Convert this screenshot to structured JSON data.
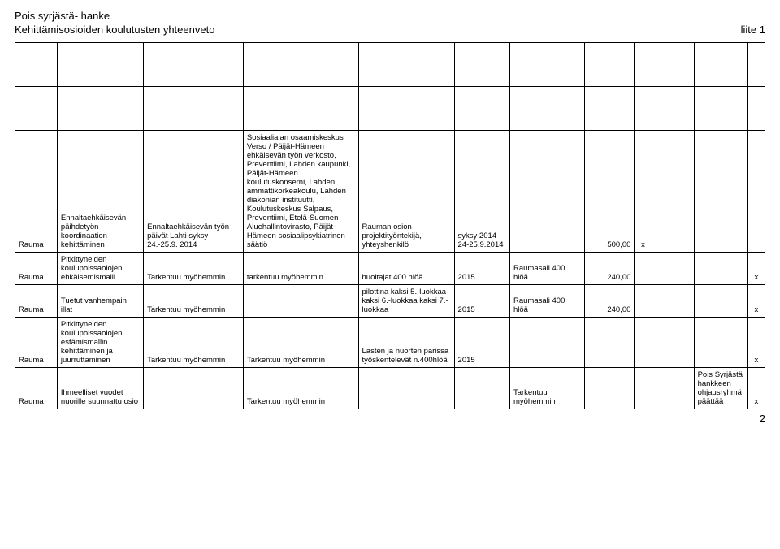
{
  "header": {
    "line1": "Pois syrjästä- hanke",
    "line2_left": "Kehittämisosioiden koulutusten yhteenveto",
    "line2_right": "liite 1"
  },
  "rows": [
    {
      "cells": [
        "",
        "",
        "",
        "",
        "",
        "",
        "",
        "",
        "",
        "",
        "",
        ""
      ],
      "cls": "empty-top"
    },
    {
      "cells": [
        "",
        "",
        "",
        "",
        "",
        "",
        "",
        "",
        "",
        "",
        "",
        ""
      ],
      "cls": "empty-top"
    },
    {
      "cells": [
        "Rauma",
        "Ennaltaehkäisevän päihdetyön koordinaation kehittäminen",
        "Ennaltaehkäisevän työn päivät Lahti syksy 24.-25.9. 2014",
        "Sosiaalialan osaamiskeskus Verso / Päijät-Hämeen ehkäisevän työn verkosto, Preventiimi, Lahden kaupunki, Päijät-Hämeen koulutuskonserni, Lahden ammattikorkeakoulu, Lahden diakonian instituutti, Koulutuskeskus Salpaus, Preventiimi, Etelä-Suomen Aluehallintovirasto, Päijät-Hämeen sosiaalipsykiatrinen säätiö",
        "Rauman osion projektityöntekijä, yhteyshenkilö",
        "syksy 2014 24-25.9.2014",
        "",
        "500,00",
        "x",
        "",
        "",
        ""
      ]
    },
    {
      "cells": [
        "Rauma",
        "Pitkittyneiden koulupoissaolojen ehkäisemismalli",
        "Tarkentuu myöhemmin",
        "tarkentuu myöhemmin",
        "huoltajat 400 hlöä",
        "2015",
        "Raumasali 400 hlöä",
        "240,00",
        "",
        "",
        "",
        "x"
      ]
    },
    {
      "cells": [
        "Rauma",
        "Tuetut vanhempain illat",
        "Tarkentuu myöhemmin",
        "",
        "pilottina kaksi 5.-luokkaa kaksi 6.-luokkaa kaksi 7.-luokkaa",
        "2015",
        "Raumasali 400 hlöä",
        "240,00",
        "",
        "",
        "",
        "x"
      ]
    },
    {
      "cells": [
        "Rauma",
        "Pitkittyneiden koulupoissaolojen estämismallin kehittäminen ja juurruttaminen",
        "Tarkentuu myöhemmin",
        "Tarkentuu myöhemmin",
        "Lasten ja nuorten parissa työskentelevät n.400hlöä",
        "2015",
        "",
        "",
        "",
        "",
        "",
        "x"
      ]
    },
    {
      "cells": [
        "Rauma",
        "Ihmeelliset vuodet nuorille suunnattu osio",
        "",
        "Tarkentuu myöhemmin",
        "",
        "",
        "Tarkentuu myöhemmin",
        "",
        "",
        "",
        "Pois Syrjästä hankkeen ohjausryhmä päättää",
        "x"
      ]
    }
  ],
  "columns": [
    "col-a",
    "col-b",
    "col-c",
    "col-d",
    "col-e",
    "col-f",
    "col-g",
    "col-h",
    "col-i",
    "col-j",
    "col-k",
    "col-l"
  ],
  "page_number": "2"
}
